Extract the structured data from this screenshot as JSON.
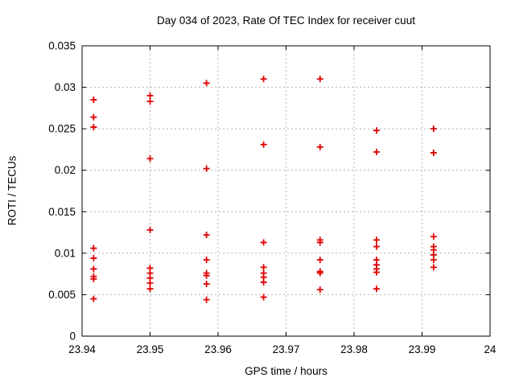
{
  "chart_data": {
    "type": "scatter",
    "title": "Day 034 of 2023, Rate Of TEC Index for receiver cuut",
    "xlabel": "GPS time / hours",
    "ylabel": "ROTI / TECUs",
    "xlim": [
      23.94,
      24
    ],
    "ylim": [
      0,
      0.035
    ],
    "grid": true,
    "legend_position": "none",
    "marker_shape": "plus",
    "colors": {
      "marker": "#e00000",
      "grid": "#b4b4b4",
      "axis": "#000000",
      "text": "#000000",
      "background": "#ffffff"
    },
    "x_ticks": [
      {
        "v": 23.94,
        "label": "23.94"
      },
      {
        "v": 23.95,
        "label": "23.95"
      },
      {
        "v": 23.96,
        "label": "23.96"
      },
      {
        "v": 23.97,
        "label": "23.97"
      },
      {
        "v": 23.98,
        "label": "23.98"
      },
      {
        "v": 23.99,
        "label": "23.99"
      },
      {
        "v": 24,
        "label": "24"
      }
    ],
    "y_ticks": [
      {
        "v": 0,
        "label": "0"
      },
      {
        "v": 0.005,
        "label": "0.005"
      },
      {
        "v": 0.01,
        "label": "0.01"
      },
      {
        "v": 0.015,
        "label": "0.015"
      },
      {
        "v": 0.02,
        "label": "0.02"
      },
      {
        "v": 0.025,
        "label": "0.025"
      },
      {
        "v": 0.03,
        "label": "0.03"
      },
      {
        "v": 0.035,
        "label": "0.035"
      }
    ],
    "series": [
      {
        "name": "ROTI",
        "color": "#e00000",
        "points": [
          [
            23.9417,
            0.0285
          ],
          [
            23.9417,
            0.0264
          ],
          [
            23.9417,
            0.0252
          ],
          [
            23.9417,
            0.0106
          ],
          [
            23.9417,
            0.0094
          ],
          [
            23.9417,
            0.0081
          ],
          [
            23.9417,
            0.0072
          ],
          [
            23.9417,
            0.0069
          ],
          [
            23.9417,
            0.0045
          ],
          [
            23.95,
            0.029
          ],
          [
            23.95,
            0.0283
          ],
          [
            23.95,
            0.0214
          ],
          [
            23.95,
            0.0128
          ],
          [
            23.95,
            0.0082
          ],
          [
            23.95,
            0.0076
          ],
          [
            23.95,
            0.007
          ],
          [
            23.95,
            0.0064
          ],
          [
            23.95,
            0.0057
          ],
          [
            23.9583,
            0.0305
          ],
          [
            23.9583,
            0.0202
          ],
          [
            23.9583,
            0.0122
          ],
          [
            23.9583,
            0.0092
          ],
          [
            23.9583,
            0.0076
          ],
          [
            23.9583,
            0.0073
          ],
          [
            23.9583,
            0.0063
          ],
          [
            23.9583,
            0.0044
          ],
          [
            23.9667,
            0.031
          ],
          [
            23.9667,
            0.0231
          ],
          [
            23.9667,
            0.0113
          ],
          [
            23.9667,
            0.0083
          ],
          [
            23.9667,
            0.0076
          ],
          [
            23.9667,
            0.0071
          ],
          [
            23.9667,
            0.0065
          ],
          [
            23.9667,
            0.0047
          ],
          [
            23.975,
            0.031
          ],
          [
            23.975,
            0.0228
          ],
          [
            23.975,
            0.0116
          ],
          [
            23.975,
            0.0113
          ],
          [
            23.975,
            0.0092
          ],
          [
            23.975,
            0.0078
          ],
          [
            23.975,
            0.0076
          ],
          [
            23.975,
            0.0056
          ],
          [
            23.9833,
            0.0248
          ],
          [
            23.9833,
            0.0222
          ],
          [
            23.9833,
            0.0116
          ],
          [
            23.9833,
            0.0108
          ],
          [
            23.9833,
            0.0092
          ],
          [
            23.9833,
            0.0086
          ],
          [
            23.9833,
            0.0081
          ],
          [
            23.9833,
            0.0077
          ],
          [
            23.9833,
            0.0057
          ],
          [
            23.9917,
            0.025
          ],
          [
            23.9917,
            0.0221
          ],
          [
            23.9917,
            0.012
          ],
          [
            23.9917,
            0.0108
          ],
          [
            23.9917,
            0.0104
          ],
          [
            23.9917,
            0.0098
          ],
          [
            23.9917,
            0.0092
          ],
          [
            23.9917,
            0.0083
          ]
        ]
      }
    ]
  }
}
